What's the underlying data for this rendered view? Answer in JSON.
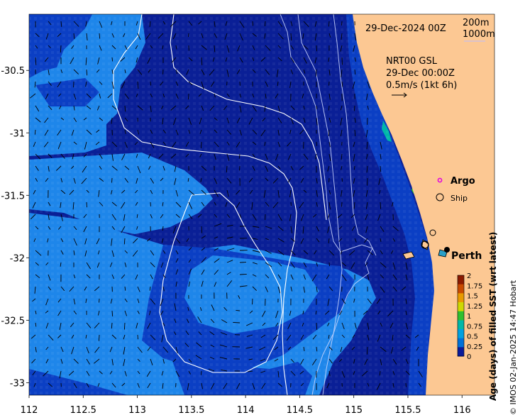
{
  "map": {
    "date_title": "29-Dec-2024 00Z",
    "legend_depths": [
      "200m",
      "1000m"
    ],
    "product": "NRT00 GSL",
    "analysis_time": "29-Dec 00:00Z",
    "vector_scale": "0.5m/s (1kt 6h)",
    "markers": {
      "argo": "Argo",
      "ship": "Ship",
      "city": "Perth"
    },
    "x_axis": {
      "ticks": [
        "112",
        "112.5",
        "113",
        "113.5",
        "114",
        "114.5",
        "115",
        "115.5",
        "116"
      ],
      "range": [
        112,
        116.3
      ]
    },
    "y_axis": {
      "ticks": [
        "-30.5",
        "-31",
        "-31.5",
        "-32",
        "-32.5",
        "-33"
      ],
      "range": [
        -33.1,
        -30.05
      ]
    },
    "colorbar": {
      "label": "Age (days) of filled SST (wrt latest)",
      "ticks": [
        "2",
        "1.75",
        "1.5",
        "1.25",
        "1",
        "0.75",
        "0.5",
        "0.25",
        "0"
      ],
      "colors": [
        "#8b1a00",
        "#c84a00",
        "#e89a00",
        "#cfd800",
        "#2fbf2f",
        "#00b7a8",
        "#00a0e0",
        "#0070d8",
        "#0a1a9a"
      ]
    },
    "credit": "© IMOS 02-Jan-2025 14:47 Hobart",
    "colors": {
      "ocean_dark": "#0a1f96",
      "ocean_mid": "#0b3fc4",
      "ocean_light": "#1e86ea",
      "land": "#fcc893"
    }
  }
}
